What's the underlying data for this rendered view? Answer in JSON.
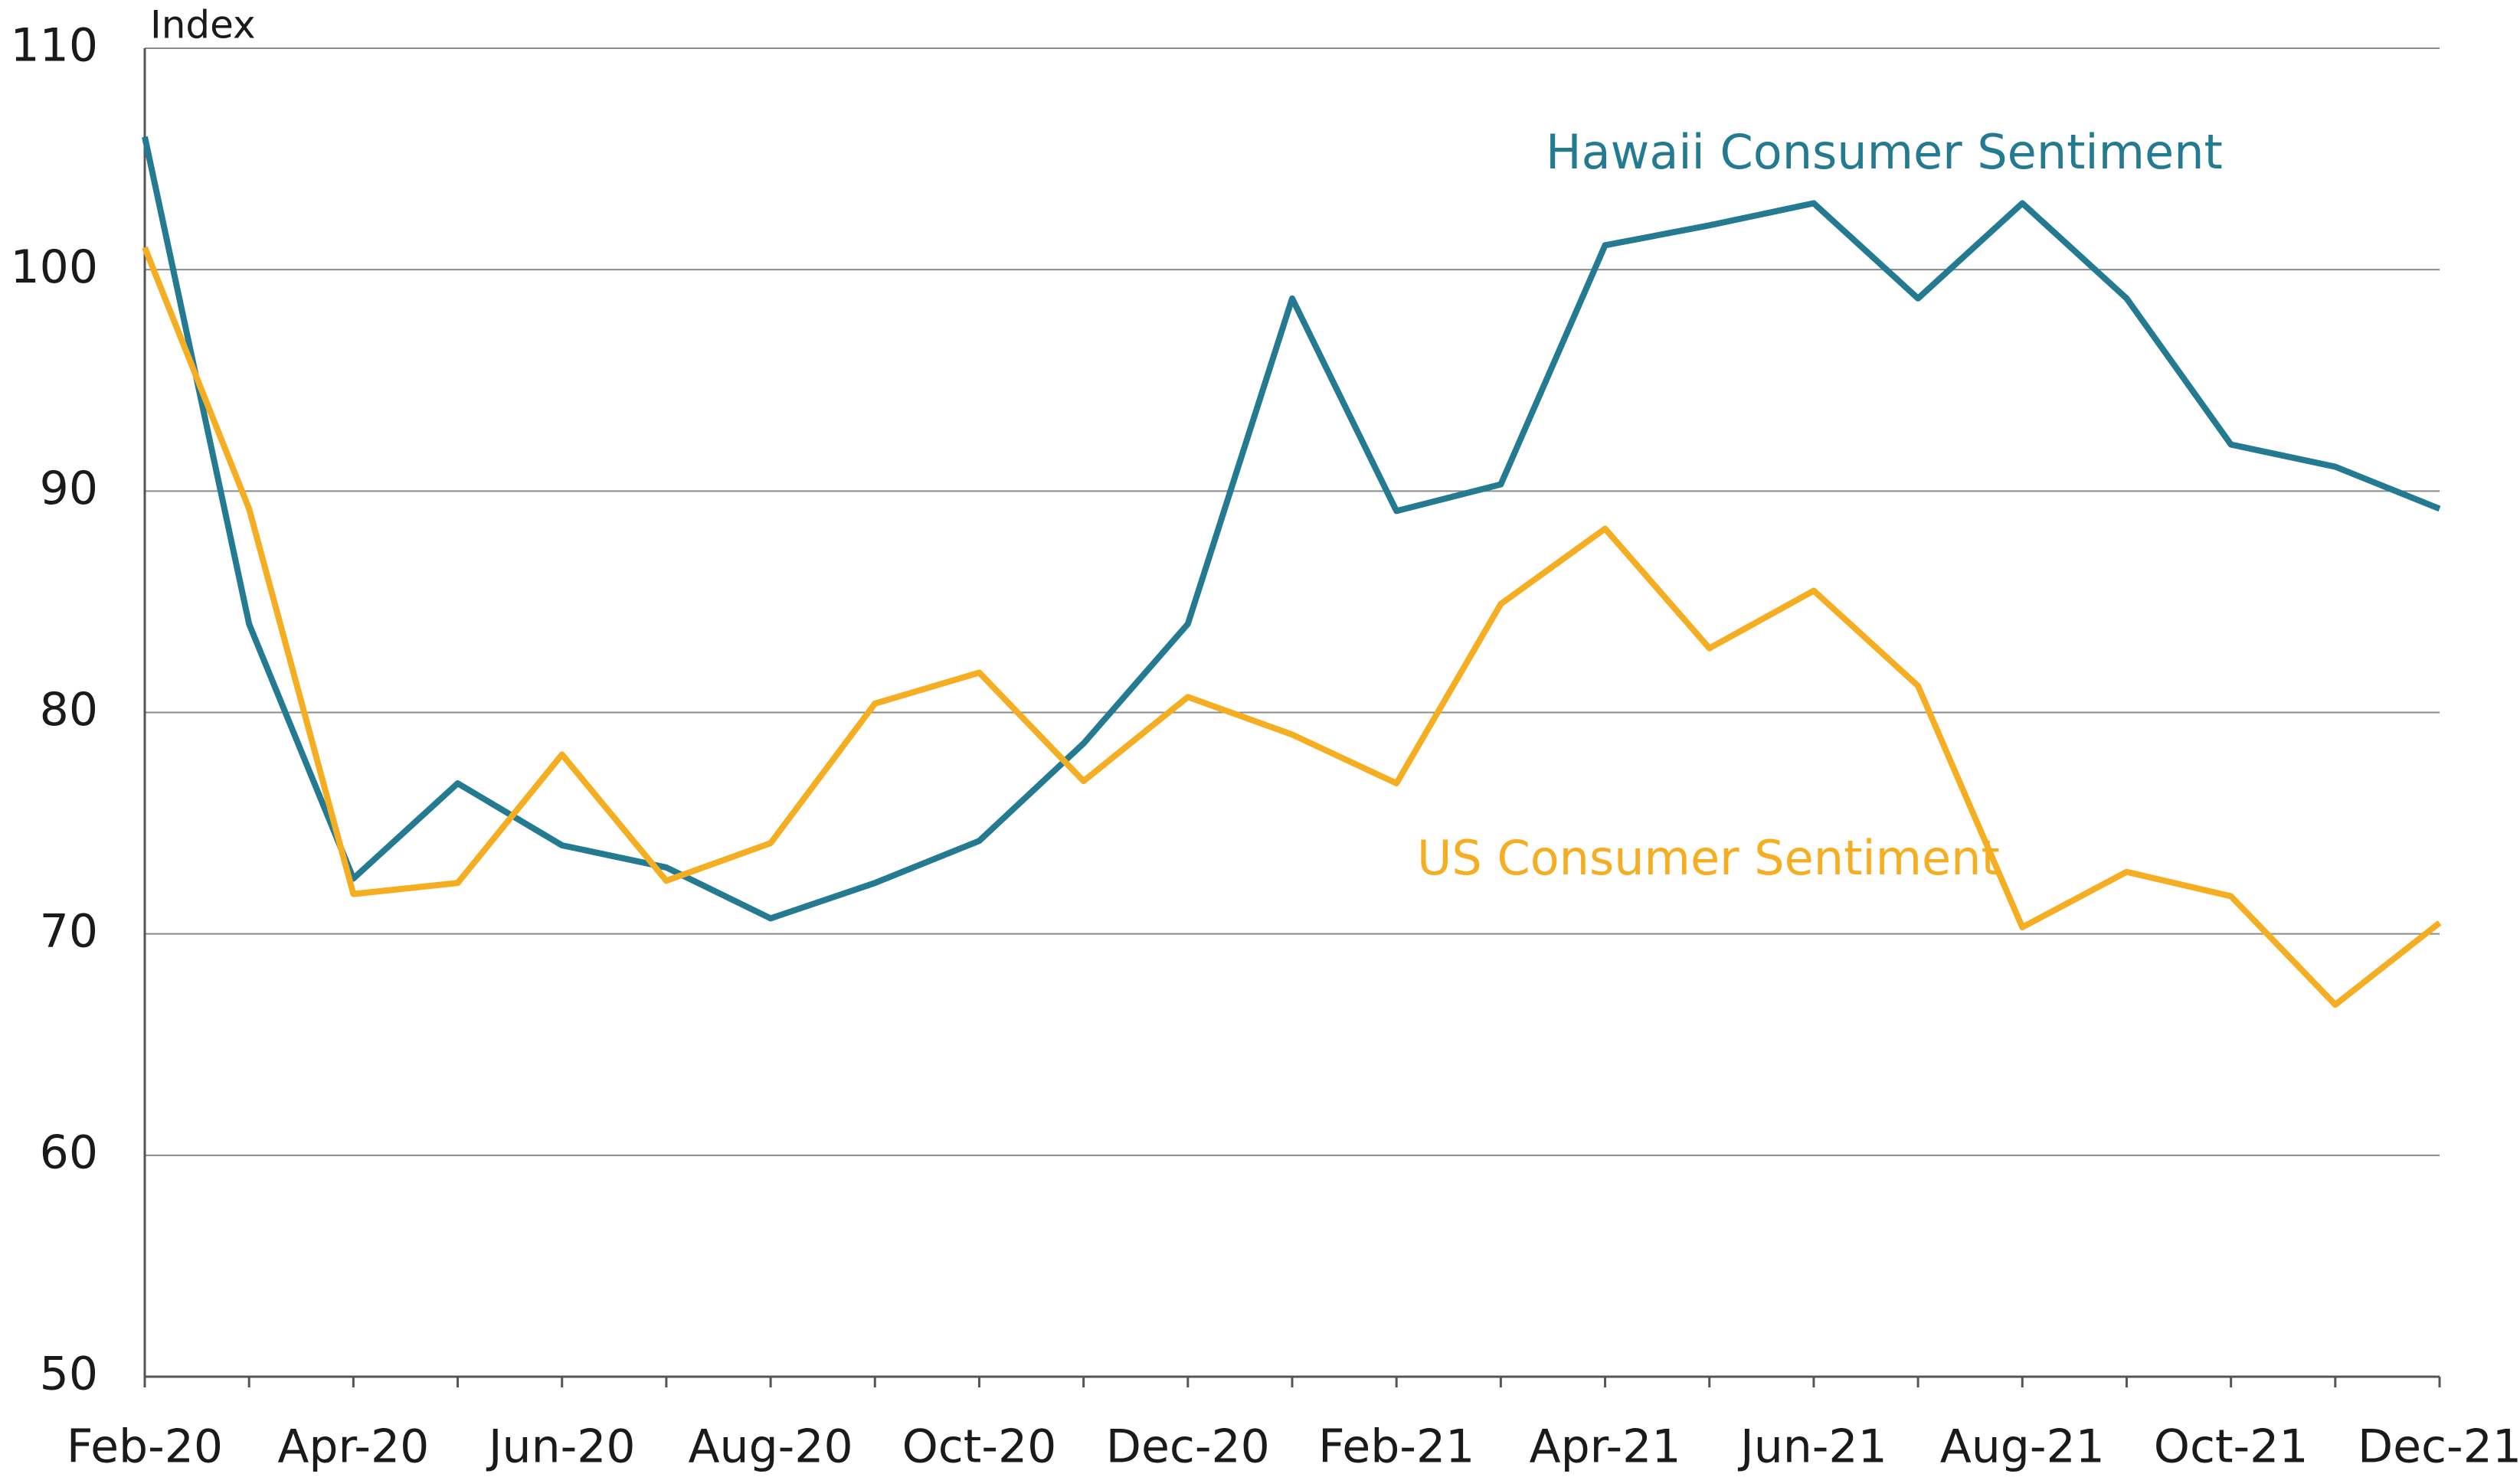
{
  "chart_data": {
    "type": "line",
    "y_label": "Index",
    "categories": [
      "Feb-20",
      null,
      "Apr-20",
      null,
      "Jun-20",
      null,
      "Aug-20",
      null,
      "Oct-20",
      null,
      "Dec-20",
      null,
      "Feb-21",
      null,
      "Apr-21",
      null,
      "Jun-21",
      null,
      "Aug-21",
      null,
      "Oct-21",
      null,
      "Dec-21"
    ],
    "series": [
      {
        "name": "Hawaii Consumer Sentiment",
        "color": "#237a91",
        "values": [
          106.0,
          84.0,
          72.5,
          76.8,
          74.0,
          73.0,
          70.7,
          72.3,
          74.2,
          78.6,
          84.0,
          98.7,
          89.1,
          90.3,
          101.1,
          102.0,
          103.0,
          98.7,
          103.0,
          98.7,
          92.1,
          91.1,
          89.2
        ]
      },
      {
        "name": "US Consumer Sentiment",
        "color": "#f5ae22",
        "values": [
          101.0,
          89.2,
          71.8,
          72.3,
          78.1,
          72.4,
          74.1,
          80.4,
          81.8,
          76.9,
          80.7,
          79.0,
          76.8,
          84.9,
          88.3,
          82.9,
          85.5,
          81.2,
          70.3,
          72.8,
          71.7,
          66.8,
          70.5
        ]
      }
    ],
    "ylim": [
      50,
      110
    ],
    "yticks": [
      50,
      60,
      70,
      80,
      90,
      100,
      110
    ],
    "grid": true
  }
}
